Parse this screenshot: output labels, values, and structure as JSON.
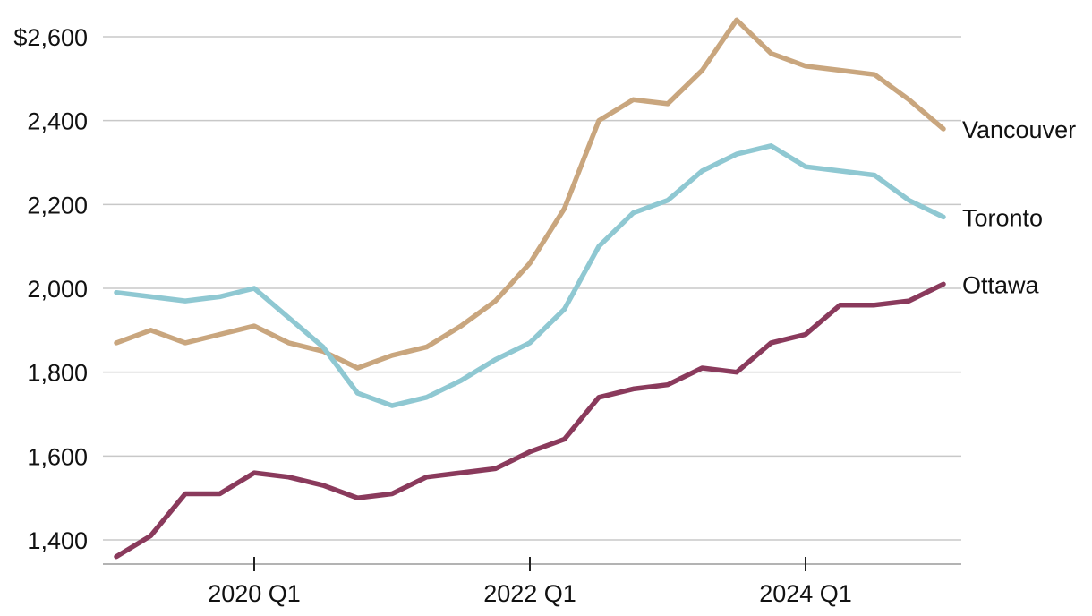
{
  "chart_data": {
    "type": "line",
    "title": "",
    "xlabel": "",
    "ylabel": "",
    "x": [
      "2019 Q1",
      "2019 Q2",
      "2019 Q3",
      "2019 Q4",
      "2020 Q1",
      "2020 Q2",
      "2020 Q3",
      "2020 Q4",
      "2021 Q1",
      "2021 Q2",
      "2021 Q3",
      "2021 Q4",
      "2022 Q1",
      "2022 Q2",
      "2022 Q3",
      "2022 Q4",
      "2023 Q1",
      "2023 Q2",
      "2023 Q3",
      "2023 Q4",
      "2024 Q1",
      "2024 Q2",
      "2024 Q3",
      "2024 Q4",
      "2025 Q1"
    ],
    "x_ticks": [
      "2020 Q1",
      "2022 Q1",
      "2024 Q1"
    ],
    "y_ticks": [
      "$2,600",
      "2,400",
      "2,200",
      "2,000",
      "1,800",
      "1,600",
      "1,400"
    ],
    "y_tick_values": [
      2600,
      2400,
      2200,
      2000,
      1800,
      1600,
      1400
    ],
    "ylim": [
      1360,
      2650
    ],
    "grid": true,
    "legend": "direct labels at line ends (right)",
    "series": [
      {
        "name": "Vancouver",
        "color": "#c9a67e",
        "values": [
          1870,
          1900,
          1870,
          1890,
          1910,
          1870,
          1850,
          1810,
          1840,
          1860,
          1910,
          1970,
          2060,
          2190,
          2400,
          2450,
          2440,
          2520,
          2640,
          2560,
          2530,
          2520,
          2510,
          2450,
          2380
        ]
      },
      {
        "name": "Toronto",
        "color": "#8fc8d2",
        "values": [
          1990,
          1980,
          1970,
          1980,
          2000,
          1930,
          1860,
          1750,
          1720,
          1740,
          1780,
          1830,
          1870,
          1950,
          2100,
          2180,
          2210,
          2280,
          2320,
          2340,
          2290,
          2280,
          2270,
          2210,
          2170
        ]
      },
      {
        "name": "Ottawa",
        "color": "#8a3a5c",
        "values": [
          1360,
          1410,
          1510,
          1510,
          1560,
          1550,
          1530,
          1500,
          1510,
          1550,
          1560,
          1570,
          1610,
          1640,
          1740,
          1760,
          1770,
          1810,
          1800,
          1870,
          1890,
          1960,
          1960,
          1970,
          2010
        ]
      }
    ]
  }
}
